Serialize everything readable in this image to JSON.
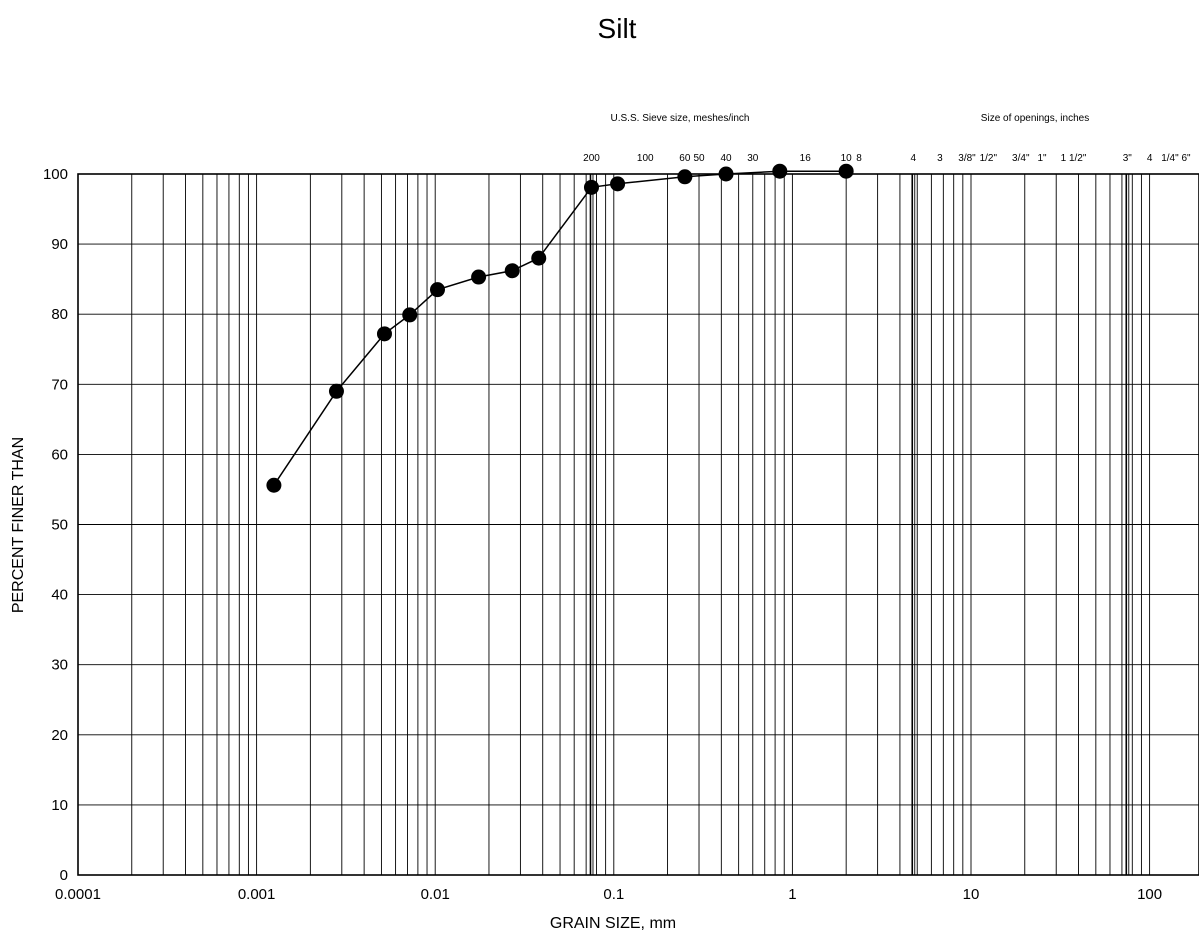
{
  "chart_data": {
    "type": "line",
    "title": "Silt",
    "xlabel": "GRAIN SIZE, mm",
    "ylabel": "PERCENT FINER THAN",
    "x_scale": "log",
    "xlim": [
      0.0001,
      200
    ],
    "ylim": [
      0,
      100
    ],
    "grid": true,
    "x_tick_labels": [
      "0.0001",
      "0.001",
      "0.01",
      "0.1",
      "1",
      "10",
      "100"
    ],
    "y_tick_labels": [
      "0",
      "10",
      "20",
      "30",
      "40",
      "50",
      "60",
      "70",
      "80",
      "90",
      "100"
    ],
    "sieve_header": "U.S.S. Sieve size, meshes/inch",
    "openings_header": "Size of openings, inches",
    "sieve_labels": [
      {
        "label": "200",
        "size_mm": 0.075
      },
      {
        "label": "100",
        "size_mm": 0.15
      },
      {
        "label": "60",
        "size_mm": 0.25
      },
      {
        "label": "50",
        "size_mm": 0.3
      },
      {
        "label": "40",
        "size_mm": 0.425
      },
      {
        "label": "30",
        "size_mm": 0.6
      },
      {
        "label": "16",
        "size_mm": 1.18
      },
      {
        "label": "10",
        "size_mm": 2.0
      },
      {
        "label": "8",
        "size_mm": 2.36
      },
      {
        "label": "4",
        "size_mm": 4.75
      }
    ],
    "opening_labels": [
      {
        "label": "3",
        "size_mm": 6.7
      },
      {
        "label": "3/8\"",
        "size_mm": 9.5
      },
      {
        "label": "1/2\"",
        "size_mm": 12.5
      },
      {
        "label": "3/4\"",
        "size_mm": 19.0
      },
      {
        "label": "1\"",
        "size_mm": 25.0
      },
      {
        "label": "1 1/2\"",
        "size_mm": 37.5
      },
      {
        "label": "3\"",
        "size_mm": 75.0
      },
      {
        "label": "4",
        "size_mm": 100.0
      },
      {
        "label": "1/4\"",
        "size_mm": 130.0
      },
      {
        "label": "6\"",
        "size_mm": 160.0
      }
    ],
    "series": [
      {
        "x": [
          0.00125,
          0.0028,
          0.0052,
          0.0072,
          0.0103,
          0.0175,
          0.027,
          0.038,
          0.075,
          0.105,
          0.25,
          0.425,
          0.85,
          2.0
        ],
        "y": [
          55.6,
          69.0,
          77.2,
          79.9,
          83.5,
          85.3,
          86.2,
          88.0,
          98.1,
          98.6,
          99.6,
          100.0,
          100.4,
          100.4
        ]
      }
    ],
    "marker": "filled-circle",
    "colors": {
      "line": "#000000",
      "marker": "#000000",
      "background": "#ffffff"
    }
  }
}
